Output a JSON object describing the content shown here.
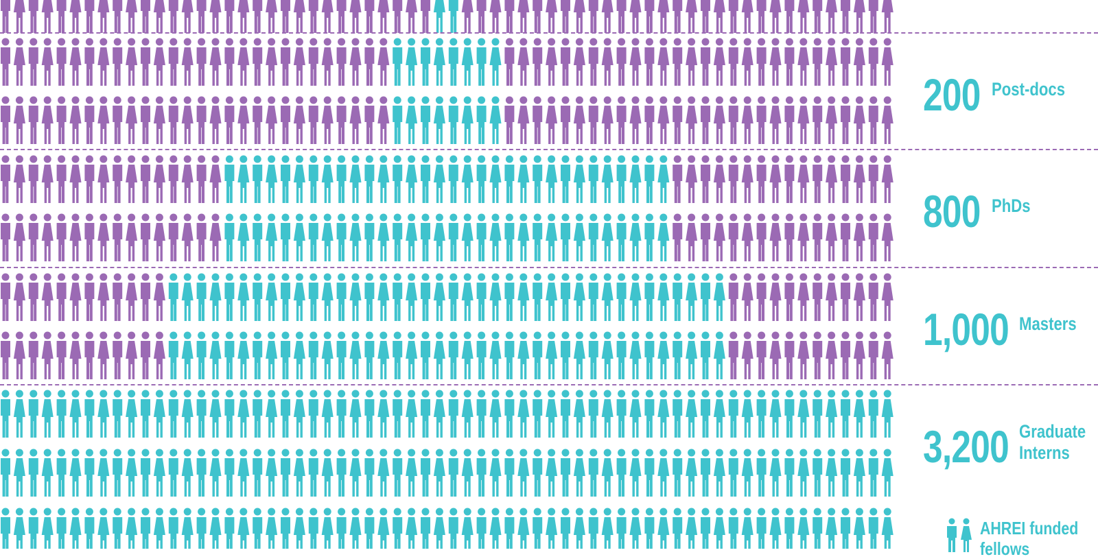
{
  "colors": {
    "highlight": "#3fc3cd",
    "base": "#9b6ab4",
    "separator": "#9b6ab4"
  },
  "icons": {
    "male": "male-figure-icon",
    "female": "female-figure-icon"
  },
  "rows": [
    {
      "row": 0,
      "total": 64,
      "highlight_start": 31,
      "highlight_count": 2
    },
    {
      "row": 1,
      "total": 64,
      "highlight_start": 28,
      "highlight_count": 8
    },
    {
      "row": 2,
      "total": 64,
      "highlight_start": 28,
      "highlight_count": 8
    },
    {
      "row": 3,
      "total": 64,
      "highlight_start": 16,
      "highlight_count": 32
    },
    {
      "row": 4,
      "total": 64,
      "highlight_start": 16,
      "highlight_count": 32
    },
    {
      "row": 5,
      "total": 64,
      "highlight_start": 12,
      "highlight_count": 40
    },
    {
      "row": 6,
      "total": 64,
      "highlight_start": 12,
      "highlight_count": 40
    },
    {
      "row": 7,
      "total": 64,
      "highlight_start": 0,
      "highlight_count": 64
    },
    {
      "row": 8,
      "total": 64,
      "highlight_start": 0,
      "highlight_count": 64
    },
    {
      "row": 9,
      "total": 64,
      "highlight_start": 0,
      "highlight_count": 64
    }
  ],
  "stats": [
    {
      "number": "200",
      "label_line1": "Post-docs",
      "label_line2": ""
    },
    {
      "number": "800",
      "label_line1": "PhDs",
      "label_line2": ""
    },
    {
      "number": "1,000",
      "label_line1": "Masters",
      "label_line2": ""
    },
    {
      "number": "3,200",
      "label_line1": "Graduate",
      "label_line2": "Interns"
    }
  ],
  "legend": {
    "label_line1": "AHREI  funded",
    "label_line2": "fellows"
  }
}
